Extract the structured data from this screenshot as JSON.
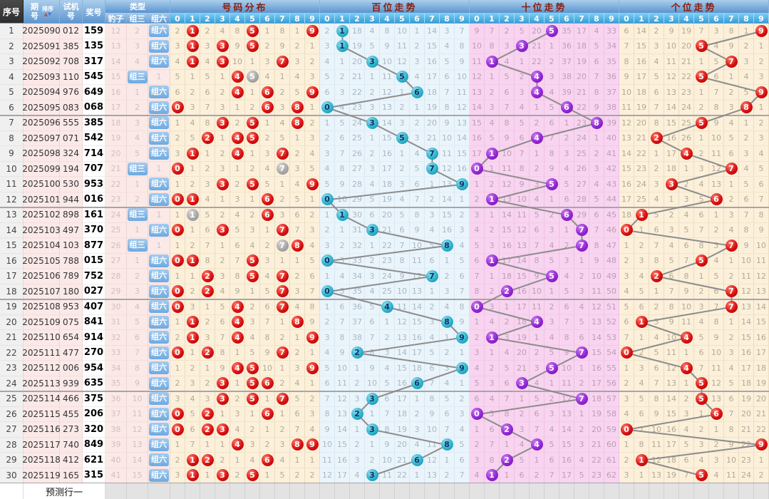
{
  "header": {
    "seq": "序号",
    "period": "期号",
    "sort": "排序",
    "test": "试机号",
    "prize": "奖号",
    "type": "类型",
    "type_cols": [
      "豹子",
      "组三",
      "组六"
    ],
    "sections": [
      "号码分布",
      "百位走势",
      "十位走势",
      "个位走势"
    ],
    "digit_labels": [
      "0",
      "1",
      "2",
      "3",
      "4",
      "5",
      "6",
      "7",
      "8",
      "9"
    ]
  },
  "footer": {
    "prediction": "预测行一"
  },
  "colors": {
    "red_ball": "#d91111",
    "gray_ball": "#a8a8a8",
    "teal_ball": "#2fb3cc",
    "purple_ball": "#9326d4",
    "trend_line": "#8c8c8c",
    "section_title": "#8b1c0c",
    "distribution_bg": "#fcf0da",
    "hundreds_bg": "#eaf4fb",
    "tens_bg": "#f8d4f0",
    "units_bg": "#fcf0da"
  },
  "chart_data": {
    "type": "table",
    "rows": [
      {
        "seq": 1,
        "period": "2025090",
        "test": "012",
        "prize": "159",
        "type": "组六"
      },
      {
        "seq": 2,
        "period": "2025091",
        "test": "385",
        "prize": "135",
        "type": "组六"
      },
      {
        "seq": 3,
        "period": "2025092",
        "test": "708",
        "prize": "317",
        "type": "组六"
      },
      {
        "seq": 4,
        "period": "2025093",
        "test": "110",
        "prize": "545",
        "type": "组三"
      },
      {
        "seq": 5,
        "period": "2025094",
        "test": "976",
        "prize": "649",
        "type": "组六"
      },
      {
        "seq": 6,
        "period": "2025095",
        "test": "083",
        "prize": "068",
        "type": "组六"
      },
      {
        "seq": 7,
        "period": "2025096",
        "test": "555",
        "prize": "385",
        "type": "组六"
      },
      {
        "seq": 8,
        "period": "2025097",
        "test": "071",
        "prize": "542",
        "type": "组六"
      },
      {
        "seq": 9,
        "period": "2025098",
        "test": "324",
        "prize": "714",
        "type": "组六"
      },
      {
        "seq": 10,
        "period": "2025099",
        "test": "194",
        "prize": "707",
        "type": "组三"
      },
      {
        "seq": 11,
        "period": "2025100",
        "test": "530",
        "prize": "953",
        "type": "组六"
      },
      {
        "seq": 12,
        "period": "2025101",
        "test": "944",
        "prize": "016",
        "type": "组六"
      },
      {
        "seq": 13,
        "period": "2025102",
        "test": "898",
        "prize": "161",
        "type": "组三"
      },
      {
        "seq": 14,
        "period": "2025103",
        "test": "497",
        "prize": "370",
        "type": "组六"
      },
      {
        "seq": 15,
        "period": "2025104",
        "test": "103",
        "prize": "877",
        "type": "组三"
      },
      {
        "seq": 16,
        "period": "2025105",
        "test": "788",
        "prize": "015",
        "type": "组六"
      },
      {
        "seq": 17,
        "period": "2025106",
        "test": "789",
        "prize": "752",
        "type": "组六"
      },
      {
        "seq": 18,
        "period": "2025107",
        "test": "180",
        "prize": "027",
        "type": "组六"
      },
      {
        "seq": 19,
        "period": "2025108",
        "test": "953",
        "prize": "407",
        "type": "组六"
      },
      {
        "seq": 20,
        "period": "2025109",
        "test": "075",
        "prize": "841",
        "type": "组六"
      },
      {
        "seq": 21,
        "period": "2025110",
        "test": "654",
        "prize": "914",
        "type": "组六"
      },
      {
        "seq": 22,
        "period": "2025111",
        "test": "477",
        "prize": "270",
        "type": "组六"
      },
      {
        "seq": 23,
        "period": "2025112",
        "test": "006",
        "prize": "954",
        "type": "组六"
      },
      {
        "seq": 24,
        "period": "2025113",
        "test": "939",
        "prize": "635",
        "type": "组六"
      },
      {
        "seq": 25,
        "period": "2025114",
        "test": "466",
        "prize": "375",
        "type": "组六"
      },
      {
        "seq": 26,
        "period": "2025115",
        "test": "455",
        "prize": "206",
        "type": "组六"
      },
      {
        "seq": 27,
        "period": "2025116",
        "test": "273",
        "prize": "320",
        "type": "组六"
      },
      {
        "seq": 28,
        "period": "2025117",
        "test": "740",
        "prize": "849",
        "type": "组六"
      },
      {
        "seq": 29,
        "period": "2025118",
        "test": "412",
        "prize": "621",
        "type": "组六"
      },
      {
        "seq": 30,
        "period": "2025119",
        "test": "165",
        "prize": "315",
        "type": "组六"
      }
    ],
    "hundreds_digits": [
      1,
      1,
      3,
      5,
      6,
      0,
      3,
      5,
      7,
      7,
      9,
      0,
      1,
      3,
      8,
      0,
      7,
      0,
      4,
      8,
      9,
      2,
      9,
      6,
      3,
      2,
      3,
      8,
      6,
      3
    ],
    "tens_digits": [
      5,
      3,
      1,
      4,
      4,
      6,
      8,
      4,
      1,
      0,
      5,
      1,
      6,
      7,
      7,
      1,
      5,
      2,
      0,
      4,
      1,
      7,
      5,
      3,
      7,
      0,
      2,
      4,
      2,
      1
    ],
    "units_digits": [
      9,
      5,
      7,
      5,
      9,
      8,
      5,
      2,
      4,
      7,
      3,
      6,
      1,
      0,
      7,
      5,
      2,
      7,
      7,
      1,
      4,
      0,
      4,
      5,
      5,
      6,
      0,
      9,
      1,
      5
    ],
    "initial_miss": {
      "leopard": 11,
      "group3": 1,
      "group6": 0,
      "distribution": [
        1,
        0,
        1,
        3,
        7,
        0,
        0,
        7,
        0,
        0
      ],
      "hundreds": [
        1,
        0,
        17,
        3,
        7,
        9,
        0,
        13,
        2,
        6
      ],
      "tens": [
        8,
        6,
        1,
        4,
        19,
        0,
        34,
        16,
        3,
        32
      ],
      "units": [
        5,
        13,
        1,
        8,
        18,
        6,
        2,
        7,
        0,
        0
      ]
    }
  }
}
